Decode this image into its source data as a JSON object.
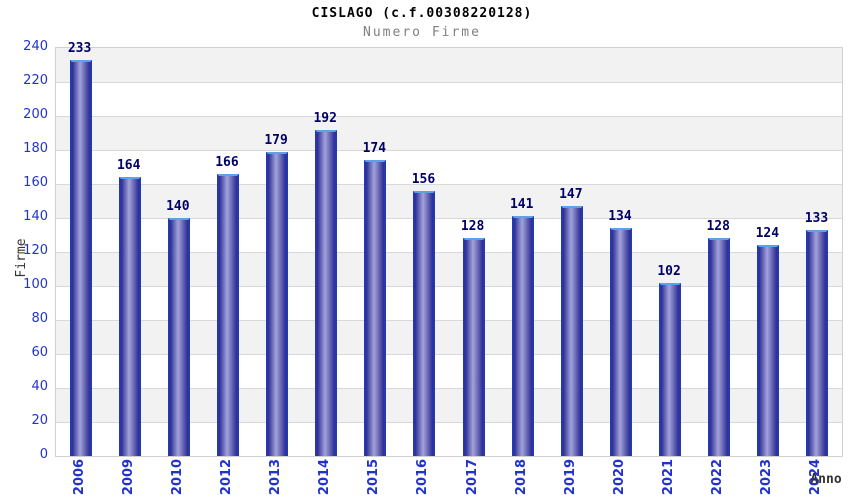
{
  "chart_data": {
    "type": "bar",
    "title": "CISLAGO (c.f.00308220128)",
    "subtitle": "Numero Firme",
    "xlabel": "Anno",
    "ylabel": "Firme",
    "categories": [
      "2006",
      "2009",
      "2010",
      "2012",
      "2013",
      "2014",
      "2015",
      "2016",
      "2017",
      "2018",
      "2019",
      "2020",
      "2021",
      "2022",
      "2023",
      "2024"
    ],
    "values": [
      233,
      164,
      140,
      166,
      179,
      192,
      174,
      156,
      128,
      141,
      147,
      134,
      102,
      128,
      124,
      133
    ],
    "ylim": [
      0,
      240
    ],
    "ytick_step": 20,
    "grid": true,
    "legend": "none",
    "band_pattern": "alternating gray/white horizontal bands, gray at top",
    "colors": {
      "bar_edge": "#2438b0",
      "bar_top_cap": "#5ca2e8",
      "bar_body_dark": "#2a2a92",
      "bar_body_light": "#a2a2da",
      "tick_label": "#2233cc",
      "value_label": "#000066",
      "band_gray": "#f2f2f2",
      "band_white": "#ffffff",
      "gridline": "#d8d8d8",
      "plot_border": "#d0d0d0",
      "title": "#000000",
      "subtitle": "#808080",
      "axis_title": "#333333"
    }
  }
}
